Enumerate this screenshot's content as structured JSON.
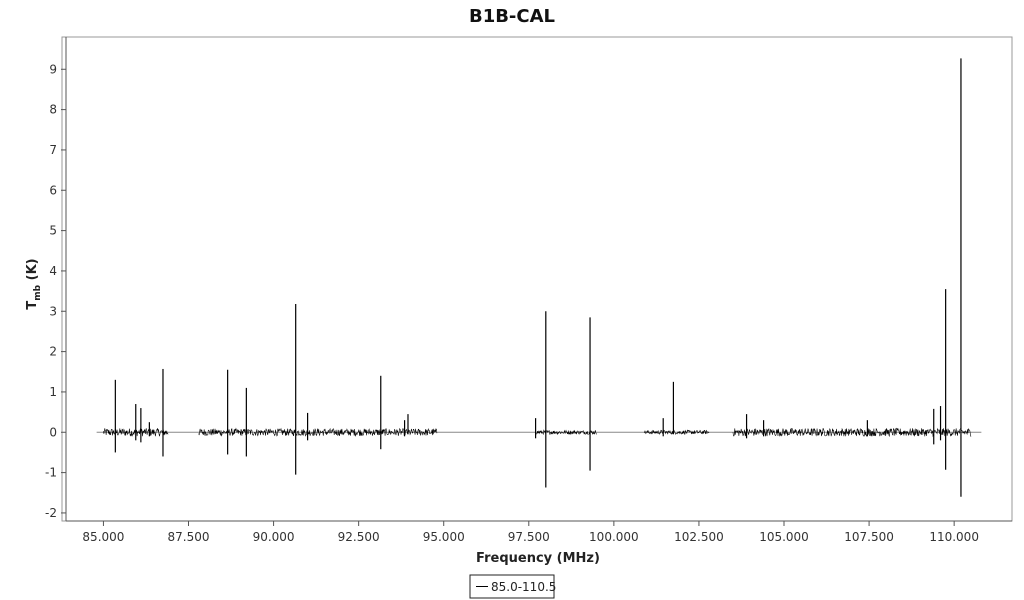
{
  "chart_data": {
    "type": "line",
    "title": "B1B-CAL",
    "xlabel": "Frequency (MHz)",
    "ylabel": "T",
    "ylabel_sub": "mb",
    "ylabel_unit": " (K)",
    "xlim": [
      83.9,
      111.7
    ],
    "ylim": [
      -2.2,
      9.8
    ],
    "x_ticks": [
      85.0,
      87.5,
      90.0,
      92.5,
      95.0,
      97.5,
      100.0,
      102.5,
      105.0,
      107.5,
      110.0
    ],
    "x_tick_labels": [
      "85.000",
      "87.500",
      "90.000",
      "92.500",
      "95.000",
      "97.500",
      "100.000",
      "102.500",
      "105.000",
      "107.500",
      "110.000"
    ],
    "y_ticks": [
      -2,
      -1,
      0,
      1,
      2,
      3,
      4,
      5,
      6,
      7,
      8,
      9
    ],
    "y_tick_labels": [
      "-2",
      "-1",
      "0",
      "1",
      "2",
      "3",
      "4",
      "5",
      "6",
      "7",
      "8",
      "9"
    ],
    "legend": {
      "position": "bottom-center",
      "entries": [
        "85.0-110.5"
      ]
    },
    "series": [
      {
        "name": "85.0-110.5",
        "color": "#000000",
        "segments": [
          {
            "x_start": 85.0,
            "x_end": 86.9,
            "noise": 0.1
          },
          {
            "x_start": 87.8,
            "x_end": 94.8,
            "noise": 0.09
          },
          {
            "x_start": 97.7,
            "x_end": 99.5,
            "noise": 0.05
          },
          {
            "x_start": 100.9,
            "x_end": 102.8,
            "noise": 0.05
          },
          {
            "x_start": 103.5,
            "x_end": 110.5,
            "noise": 0.1
          }
        ],
        "peaks": [
          {
            "x": 85.35,
            "y_max": 1.3,
            "y_min": -0.5
          },
          {
            "x": 85.95,
            "y_max": 0.7,
            "y_min": -0.2
          },
          {
            "x": 86.1,
            "y_max": 0.6,
            "y_min": -0.25
          },
          {
            "x": 86.35,
            "y_max": 0.25,
            "y_min": -0.1
          },
          {
            "x": 86.75,
            "y_max": 1.57,
            "y_min": -0.6
          },
          {
            "x": 88.65,
            "y_max": 1.55,
            "y_min": -0.55
          },
          {
            "x": 89.2,
            "y_max": 1.1,
            "y_min": -0.6
          },
          {
            "x": 90.65,
            "y_max": 3.18,
            "y_min": -1.05
          },
          {
            "x": 91.0,
            "y_max": 0.48,
            "y_min": -0.2
          },
          {
            "x": 93.15,
            "y_max": 1.4,
            "y_min": -0.42
          },
          {
            "x": 93.85,
            "y_max": 0.3,
            "y_min": -0.1
          },
          {
            "x": 93.95,
            "y_max": 0.45,
            "y_min": -0.05
          },
          {
            "x": 97.7,
            "y_max": 0.35,
            "y_min": -0.15
          },
          {
            "x": 98.0,
            "y_max": 3.0,
            "y_min": -1.37
          },
          {
            "x": 99.3,
            "y_max": 2.85,
            "y_min": -0.95
          },
          {
            "x": 101.45,
            "y_max": 0.35,
            "y_min": -0.1
          },
          {
            "x": 101.75,
            "y_max": 1.25,
            "y_min": -0.05
          },
          {
            "x": 103.9,
            "y_max": 0.45,
            "y_min": -0.15
          },
          {
            "x": 104.4,
            "y_max": 0.3,
            "y_min": -0.1
          },
          {
            "x": 107.45,
            "y_max": 0.3,
            "y_min": -0.1
          },
          {
            "x": 109.4,
            "y_max": 0.58,
            "y_min": -0.3
          },
          {
            "x": 109.6,
            "y_max": 0.65,
            "y_min": -0.2
          },
          {
            "x": 109.75,
            "y_max": 3.55,
            "y_min": -0.93
          },
          {
            "x": 110.2,
            "y_max": 9.27,
            "y_min": -1.6
          }
        ]
      }
    ]
  }
}
